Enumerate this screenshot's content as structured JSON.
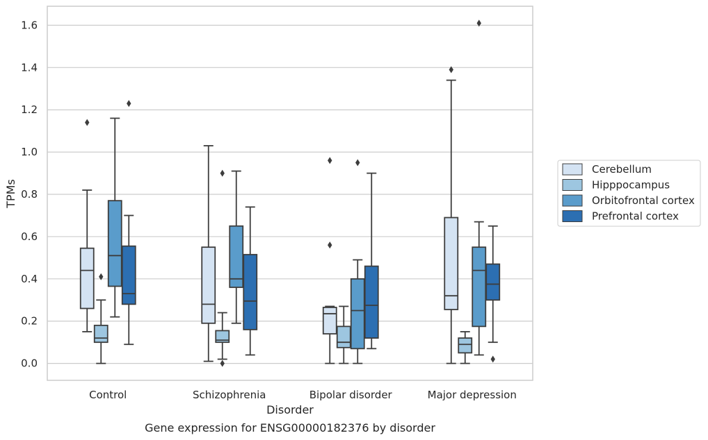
{
  "chart_data": {
    "type": "box",
    "caption": "Gene expression for ENSG00000182376 by disorder",
    "xlabel": "Disorder",
    "ylabel": "TPMs",
    "ylim": [
      -0.08,
      1.69
    ],
    "yticks": [
      "0.0",
      "0.2",
      "0.4",
      "0.6",
      "0.8",
      "1.0",
      "1.2",
      "1.4",
      "1.6"
    ],
    "grid": "horizontal",
    "legend_position": "right",
    "categories": [
      "Control",
      "Schizophrenia",
      "Bipolar disorder",
      "Major depression"
    ],
    "series": [
      {
        "name": "Cerebellum",
        "color": "#d4e3f3",
        "boxes": [
          {
            "whislo": 0.15,
            "q1": 0.26,
            "med": 0.44,
            "q3": 0.545,
            "whishi": 0.82,
            "fliers": [
              1.14
            ]
          },
          {
            "whislo": 0.01,
            "q1": 0.19,
            "med": 0.28,
            "q3": 0.55,
            "whishi": 1.03,
            "fliers": []
          },
          {
            "whislo": 0.0,
            "q1": 0.14,
            "med": 0.235,
            "q3": 0.265,
            "whishi": 0.27,
            "fliers": [
              0.56,
              0.96
            ]
          },
          {
            "whislo": 0.0,
            "q1": 0.255,
            "med": 0.32,
            "q3": 0.69,
            "whishi": 1.34,
            "fliers": [
              1.39
            ]
          }
        ]
      },
      {
        "name": "Hipppocampus",
        "color": "#9dc6e0",
        "boxes": [
          {
            "whislo": 0.0,
            "q1": 0.1,
            "med": 0.12,
            "q3": 0.18,
            "whishi": 0.3,
            "fliers": [
              0.41
            ]
          },
          {
            "whislo": 0.02,
            "q1": 0.1,
            "med": 0.11,
            "q3": 0.155,
            "whishi": 0.24,
            "fliers": [
              0.0,
              0.9
            ]
          },
          {
            "whislo": 0.0,
            "q1": 0.075,
            "med": 0.1,
            "q3": 0.175,
            "whishi": 0.27,
            "fliers": []
          },
          {
            "whislo": 0.0,
            "q1": 0.05,
            "med": 0.09,
            "q3": 0.12,
            "whishi": 0.15,
            "fliers": []
          }
        ]
      },
      {
        "name": "Orbitofrontal cortex",
        "color": "#5a9ccb",
        "boxes": [
          {
            "whislo": 0.22,
            "q1": 0.365,
            "med": 0.51,
            "q3": 0.77,
            "whishi": 1.16,
            "fliers": []
          },
          {
            "whislo": 0.19,
            "q1": 0.36,
            "med": 0.4,
            "q3": 0.65,
            "whishi": 0.91,
            "fliers": []
          },
          {
            "whislo": 0.0,
            "q1": 0.07,
            "med": 0.25,
            "q3": 0.4,
            "whishi": 0.49,
            "fliers": [
              0.95
            ]
          },
          {
            "whislo": 0.04,
            "q1": 0.175,
            "med": 0.44,
            "q3": 0.55,
            "whishi": 0.67,
            "fliers": [
              1.61
            ]
          }
        ]
      },
      {
        "name": "Prefrontal cortex",
        "color": "#2c6fb2",
        "boxes": [
          {
            "whislo": 0.09,
            "q1": 0.28,
            "med": 0.33,
            "q3": 0.555,
            "whishi": 0.7,
            "fliers": [
              1.23
            ]
          },
          {
            "whislo": 0.04,
            "q1": 0.16,
            "med": 0.295,
            "q3": 0.515,
            "whishi": 0.74,
            "fliers": []
          },
          {
            "whislo": 0.07,
            "q1": 0.12,
            "med": 0.275,
            "q3": 0.46,
            "whishi": 0.9,
            "fliers": []
          },
          {
            "whislo": 0.1,
            "q1": 0.3,
            "med": 0.375,
            "q3": 0.47,
            "whishi": 0.65,
            "fliers": [
              0.02
            ]
          }
        ]
      }
    ]
  }
}
